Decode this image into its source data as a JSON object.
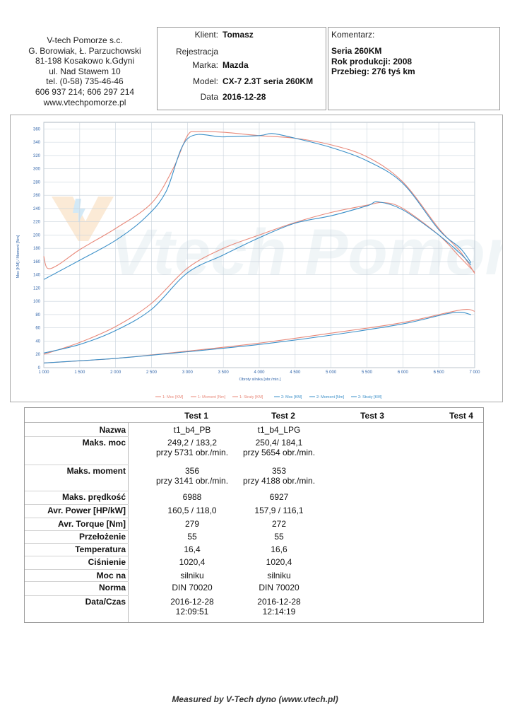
{
  "company": {
    "lines": [
      "V-tech Pomorze s.c.",
      "G. Borowiak, Ł. Parzuchowski",
      "81-198 Kosakowo k.Gdyni",
      "ul. Nad Stawem 10",
      "tel. (0-58) 735-46-46",
      "606 937 214; 606 297 214",
      "www.vtechpomorze.pl"
    ]
  },
  "client": {
    "rows": [
      {
        "label": "Klient:",
        "value": "Tomasz"
      },
      {
        "label": "Rejestracja",
        "value": ""
      },
      {
        "label": "Marka:",
        "value": "Mazda"
      },
      {
        "label": "Model:",
        "value": "CX-7 2.3T seria 260KM"
      },
      {
        "label": "Data",
        "value": "2016-12-28"
      }
    ]
  },
  "comment": {
    "title": "Komentarz:",
    "lines": [
      "Seria 260KM",
      "Rok produkcji: 2008",
      "Przebieg: 276 tyś km"
    ]
  },
  "watermark": "Vtech Pomorze",
  "chart_data": {
    "type": "line",
    "xlabel": "Obroty silnika [obr./min.]",
    "ylabel": "Moc [KM] / Moment [Nm]",
    "xlim": [
      1000,
      7000
    ],
    "ylim": [
      0,
      370
    ],
    "grid": true,
    "legend_position": "bottom",
    "x_ticks": [
      "1 000",
      "1 500",
      "2 000",
      "2 500",
      "3 000",
      "3 500",
      "4 000",
      "4 500",
      "5 000",
      "5 500",
      "6 000",
      "6 500",
      "7 000"
    ],
    "y_ticks": [
      "0",
      "20",
      "40",
      "60",
      "80",
      "100",
      "120",
      "140",
      "160",
      "180",
      "200",
      "220",
      "240",
      "260",
      "280",
      "300",
      "320",
      "340",
      "360"
    ],
    "series": [
      {
        "name": "1: Moc [KM]",
        "color": "#e8897a",
        "x": [
          1000,
          1500,
          2000,
          2500,
          3000,
          3500,
          4000,
          4500,
          5000,
          5500,
          5731,
          6000,
          6500,
          6800,
          7000
        ],
        "y": [
          20,
          38,
          62,
          97,
          150,
          180,
          200,
          219,
          234,
          245,
          249,
          240,
          200,
          166,
          144
        ]
      },
      {
        "name": "1: Moment [Nm]",
        "color": "#e8897a",
        "x": [
          1000,
          1050,
          1200,
          1500,
          2000,
          2500,
          2800,
          3000,
          3141,
          3500,
          4000,
          4500,
          5000,
          5500,
          6000,
          6500,
          6800,
          7000
        ],
        "y": [
          168,
          150,
          155,
          178,
          210,
          248,
          300,
          350,
          356,
          355,
          350,
          346,
          336,
          318,
          280,
          210,
          175,
          142
        ]
      },
      {
        "name": "1: Straty [KM]",
        "color": "#e8897a",
        "x": [
          1000,
          2000,
          3000,
          4000,
          5000,
          6000,
          6800,
          7000
        ],
        "y": [
          7,
          14,
          25,
          37,
          52,
          68,
          87,
          85
        ]
      },
      {
        "name": "2: Moc [KM]",
        "color": "#3a8fc8",
        "x": [
          1000,
          1500,
          2000,
          2500,
          3000,
          3500,
          4000,
          4500,
          5000,
          5500,
          5654,
          6000,
          6500,
          6800,
          6950
        ],
        "y": [
          22,
          35,
          56,
          88,
          143,
          170,
          196,
          218,
          229,
          244,
          250,
          238,
          200,
          172,
          155
        ]
      },
      {
        "name": "2: Moment [Nm]",
        "color": "#3a8fc8",
        "x": [
          1000,
          1500,
          2000,
          2400,
          2700,
          3000,
          3500,
          4000,
          4188,
          4500,
          5000,
          5500,
          6000,
          6500,
          6800,
          6950
        ],
        "y": [
          133,
          162,
          192,
          225,
          265,
          345,
          348,
          350,
          353,
          346,
          332,
          312,
          278,
          208,
          180,
          158
        ]
      },
      {
        "name": "2: Straty [KM]",
        "color": "#3a8fc8",
        "x": [
          1000,
          2000,
          3000,
          4000,
          5000,
          6000,
          6700,
          6950
        ],
        "y": [
          7,
          14,
          24,
          35,
          49,
          66,
          83,
          80
        ]
      }
    ]
  },
  "results": {
    "columns": [
      "Test 1",
      "Test 2",
      "Test 3",
      "Test 4"
    ],
    "rows": [
      {
        "label": "Nazwa",
        "t1": [
          "t1_b4_PB"
        ],
        "t2": [
          "t1_b4_LPG"
        ]
      },
      {
        "label": "Maks. moc",
        "t1": [
          "249,2 / 183,2",
          "przy 5731 obr./min."
        ],
        "t2": [
          "250,4/ 184,1",
          "przy 5654 obr./min."
        ]
      },
      {
        "label": "Maks. moment",
        "t1": [
          "356",
          "przy 3141 obr./min."
        ],
        "t2": [
          "353",
          "przy 4188 obr./min."
        ]
      },
      {
        "label": "Maks. prędkość",
        "t1": [
          "6988"
        ],
        "t2": [
          "6927"
        ]
      },
      {
        "label": "Avr. Power [HP/kW]",
        "t1": [
          "160,5 / 118,0"
        ],
        "t2": [
          "157,9 / 116,1"
        ]
      },
      {
        "label": "Avr. Torque [Nm]",
        "t1": [
          "279"
        ],
        "t2": [
          "272"
        ]
      },
      {
        "label": "Przełożenie",
        "t1": [
          "55"
        ],
        "t2": [
          "55"
        ]
      },
      {
        "label": "Temperatura",
        "t1": [
          "16,4"
        ],
        "t2": [
          "16,6"
        ]
      },
      {
        "label": "Ciśnienie",
        "t1": [
          "1020,4"
        ],
        "t2": [
          "1020,4"
        ]
      },
      {
        "label": "Moc na",
        "t1": [
          "silniku"
        ],
        "t2": [
          "silniku"
        ]
      },
      {
        "label": "Norma",
        "t1": [
          "DIN 70020"
        ],
        "t2": [
          "DIN 70020"
        ]
      },
      {
        "label": "Data/Czas",
        "t1": [
          "2016-12-28",
          "12:09:51"
        ],
        "t2": [
          "2016-12-28",
          "12:14:19"
        ]
      }
    ]
  },
  "footer": "Measured by V-Tech dyno (www.vtech.pl)"
}
